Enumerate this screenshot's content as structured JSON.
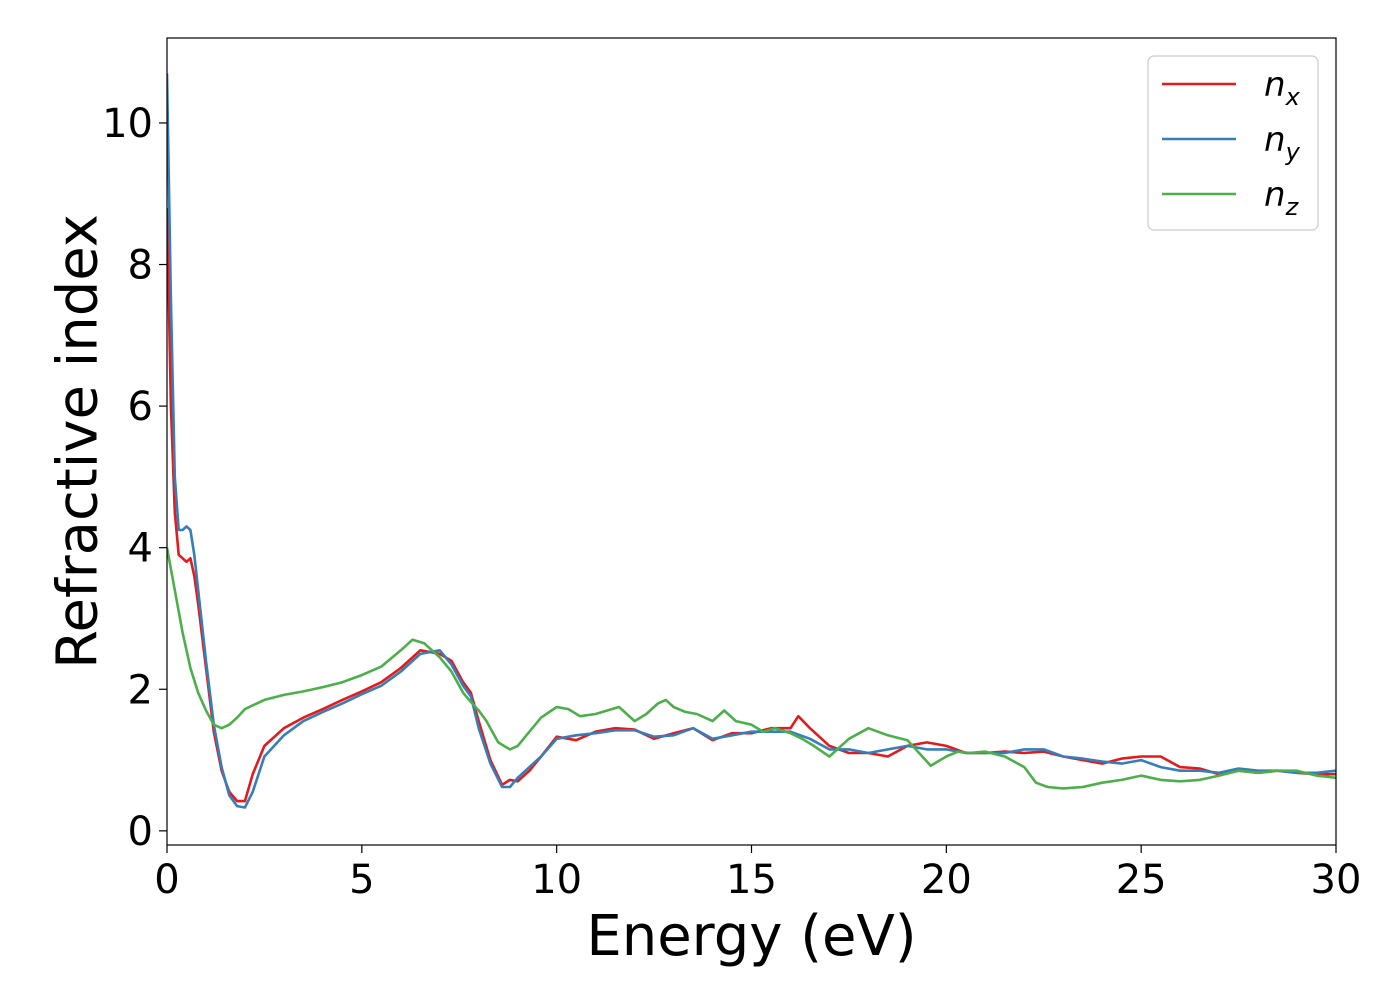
{
  "chart_data": {
    "type": "line",
    "title": "",
    "xlabel": "Energy (eV)",
    "ylabel": "Refractive index",
    "xlim": [
      0,
      30
    ],
    "ylim": [
      -0.2,
      11.2
    ],
    "xticks": [
      0,
      5,
      10,
      15,
      20,
      25,
      30
    ],
    "yticks": [
      0,
      2,
      4,
      6,
      8,
      10
    ],
    "grid": false,
    "legend_position": "top-right",
    "series": [
      {
        "name": "n_x",
        "base": "n",
        "sub": "x",
        "color": "#e41a1c",
        "x": [
          0,
          0.1,
          0.2,
          0.3,
          0.4,
          0.5,
          0.6,
          0.7,
          0.8,
          1.0,
          1.2,
          1.4,
          1.6,
          1.8,
          2.0,
          2.2,
          2.5,
          3.0,
          3.5,
          4.0,
          4.5,
          5.0,
          5.5,
          6.0,
          6.5,
          7.0,
          7.3,
          7.6,
          7.8,
          8.0,
          8.3,
          8.6,
          8.8,
          9.0,
          9.3,
          9.6,
          10.0,
          10.5,
          11.0,
          11.5,
          12.0,
          12.5,
          13.0,
          13.5,
          14.0,
          14.5,
          15.0,
          15.5,
          16.0,
          16.2,
          16.5,
          17.0,
          17.5,
          18.0,
          18.5,
          19.0,
          19.5,
          20.0,
          20.5,
          21.0,
          21.5,
          22.0,
          22.5,
          23.0,
          23.5,
          24.0,
          24.5,
          25.0,
          25.5,
          26.0,
          26.5,
          27.0,
          27.5,
          28.0,
          28.5,
          29.0,
          29.5,
          30.0
        ],
        "y": [
          8.8,
          6.0,
          4.5,
          3.9,
          3.85,
          3.8,
          3.85,
          3.6,
          3.2,
          2.3,
          1.4,
          0.85,
          0.55,
          0.42,
          0.42,
          0.8,
          1.2,
          1.45,
          1.6,
          1.72,
          1.85,
          1.97,
          2.1,
          2.3,
          2.55,
          2.5,
          2.4,
          2.1,
          1.95,
          1.55,
          1.0,
          0.65,
          0.72,
          0.7,
          0.85,
          1.05,
          1.33,
          1.28,
          1.4,
          1.45,
          1.43,
          1.3,
          1.38,
          1.45,
          1.28,
          1.38,
          1.38,
          1.45,
          1.45,
          1.62,
          1.45,
          1.2,
          1.1,
          1.1,
          1.05,
          1.2,
          1.25,
          1.2,
          1.1,
          1.1,
          1.12,
          1.1,
          1.12,
          1.05,
          1.0,
          0.95,
          1.02,
          1.05,
          1.05,
          0.9,
          0.88,
          0.8,
          0.85,
          0.82,
          0.85,
          0.82,
          0.8,
          0.8
        ]
      },
      {
        "name": "n_y",
        "base": "n",
        "sub": "y",
        "color": "#377eb8",
        "x": [
          0,
          0.1,
          0.2,
          0.3,
          0.4,
          0.5,
          0.6,
          0.7,
          0.8,
          1.0,
          1.2,
          1.4,
          1.6,
          1.8,
          2.0,
          2.2,
          2.5,
          3.0,
          3.5,
          4.0,
          4.5,
          5.0,
          5.5,
          6.0,
          6.5,
          7.0,
          7.3,
          7.6,
          7.8,
          8.0,
          8.3,
          8.6,
          8.8,
          9.0,
          9.3,
          9.6,
          10.0,
          10.5,
          11.0,
          11.5,
          12.0,
          12.5,
          13.0,
          13.5,
          14.0,
          14.5,
          15.0,
          15.5,
          16.0,
          16.5,
          17.0,
          17.5,
          18.0,
          18.5,
          19.0,
          19.5,
          20.0,
          20.5,
          21.0,
          21.5,
          22.0,
          22.5,
          23.0,
          23.5,
          24.0,
          24.5,
          25.0,
          25.5,
          26.0,
          26.5,
          27.0,
          27.5,
          28.0,
          28.5,
          29.0,
          29.5,
          30.0
        ],
        "y": [
          10.7,
          7.5,
          5.0,
          4.25,
          4.25,
          4.3,
          4.25,
          3.9,
          3.4,
          2.4,
          1.5,
          0.9,
          0.5,
          0.35,
          0.33,
          0.55,
          1.05,
          1.35,
          1.55,
          1.68,
          1.8,
          1.93,
          2.05,
          2.25,
          2.5,
          2.55,
          2.35,
          2.05,
          1.9,
          1.45,
          0.95,
          0.62,
          0.62,
          0.75,
          0.9,
          1.05,
          1.3,
          1.35,
          1.38,
          1.42,
          1.42,
          1.33,
          1.35,
          1.45,
          1.3,
          1.35,
          1.4,
          1.4,
          1.4,
          1.3,
          1.15,
          1.15,
          1.1,
          1.15,
          1.2,
          1.15,
          1.15,
          1.1,
          1.1,
          1.1,
          1.15,
          1.15,
          1.05,
          1.02,
          0.98,
          0.95,
          1.0,
          0.9,
          0.85,
          0.85,
          0.82,
          0.88,
          0.85,
          0.85,
          0.82,
          0.82,
          0.85
        ]
      },
      {
        "name": "n_z",
        "base": "n",
        "sub": "z",
        "color": "#4daf4a",
        "x": [
          0,
          0.2,
          0.4,
          0.6,
          0.8,
          1.0,
          1.2,
          1.4,
          1.6,
          1.8,
          2.0,
          2.5,
          3.0,
          3.5,
          4.0,
          4.5,
          5.0,
          5.5,
          6.0,
          6.3,
          6.6,
          7.0,
          7.3,
          7.6,
          7.8,
          8.0,
          8.2,
          8.5,
          8.8,
          9.0,
          9.3,
          9.6,
          10.0,
          10.3,
          10.6,
          11.0,
          11.3,
          11.6,
          12.0,
          12.3,
          12.6,
          12.8,
          13.0,
          13.3,
          13.6,
          14.0,
          14.3,
          14.6,
          15.0,
          15.3,
          15.6,
          16.0,
          16.3,
          16.6,
          17.0,
          17.5,
          18.0,
          18.5,
          19.0,
          19.3,
          19.6,
          20.0,
          20.3,
          20.6,
          21.0,
          21.5,
          22.0,
          22.3,
          22.6,
          23.0,
          23.5,
          24.0,
          24.5,
          25.0,
          25.5,
          26.0,
          26.5,
          27.0,
          27.5,
          28.0,
          28.5,
          29.0,
          29.5,
          30.0
        ],
        "y": [
          4.0,
          3.4,
          2.8,
          2.3,
          1.95,
          1.7,
          1.5,
          1.45,
          1.5,
          1.6,
          1.72,
          1.85,
          1.92,
          1.97,
          2.03,
          2.1,
          2.2,
          2.32,
          2.55,
          2.7,
          2.65,
          2.45,
          2.25,
          1.95,
          1.82,
          1.7,
          1.55,
          1.25,
          1.15,
          1.2,
          1.4,
          1.6,
          1.75,
          1.72,
          1.62,
          1.65,
          1.7,
          1.75,
          1.55,
          1.65,
          1.8,
          1.85,
          1.75,
          1.68,
          1.65,
          1.55,
          1.7,
          1.55,
          1.5,
          1.4,
          1.45,
          1.38,
          1.3,
          1.2,
          1.05,
          1.3,
          1.45,
          1.35,
          1.28,
          1.1,
          0.92,
          1.05,
          1.12,
          1.1,
          1.12,
          1.05,
          0.9,
          0.68,
          0.62,
          0.6,
          0.62,
          0.68,
          0.72,
          0.78,
          0.72,
          0.7,
          0.72,
          0.78,
          0.85,
          0.82,
          0.85,
          0.85,
          0.78,
          0.75
        ]
      }
    ]
  }
}
